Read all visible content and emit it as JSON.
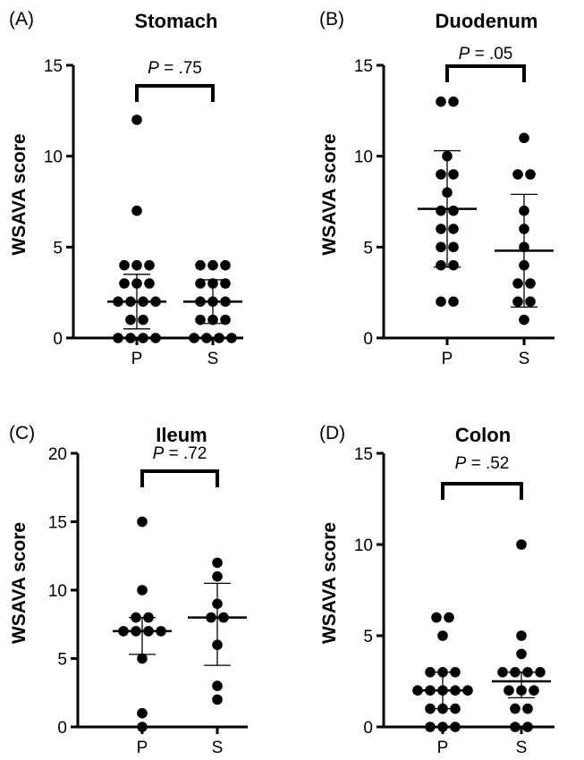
{
  "chart_data": [
    {
      "type": "scatter",
      "panel": "(A)",
      "title": "Stomach",
      "ylabel": "WSAVA score",
      "xlabel": "",
      "categories": [
        "P",
        "S"
      ],
      "ylim": [
        0,
        15
      ],
      "yticks": [
        "0",
        "5",
        "10",
        "15"
      ],
      "p_prefix": "P",
      "p_text": " = .75",
      "series": [
        {
          "category": "P",
          "values": [
            12,
            7,
            4,
            4,
            4,
            3,
            3,
            3,
            2,
            2,
            2,
            2,
            1,
            1,
            0,
            0,
            0,
            0
          ],
          "mean": 2.0,
          "sd_low": 0.5,
          "sd_high": 3.5
        },
        {
          "category": "S",
          "values": [
            4,
            4,
            4,
            3,
            3,
            3,
            2,
            2,
            2,
            1,
            1,
            1,
            0,
            0,
            0,
            0
          ],
          "mean": 2.0,
          "sd_low": 0.8,
          "sd_high": 3.2
        }
      ]
    },
    {
      "type": "scatter",
      "panel": "(B)",
      "title": "Duodenum",
      "ylabel": "WSAVA score",
      "xlabel": "",
      "categories": [
        "P",
        "S"
      ],
      "ylim": [
        0,
        15
      ],
      "yticks": [
        "0",
        "5",
        "10",
        "15"
      ],
      "p_prefix": "P",
      "p_text": " = .05",
      "series": [
        {
          "category": "P",
          "values": [
            13,
            13,
            10,
            9,
            9,
            8,
            7,
            7,
            6,
            6,
            5,
            5,
            4,
            4,
            2,
            2
          ],
          "mean": 7.1,
          "sd_low": 3.9,
          "sd_high": 10.3
        },
        {
          "category": "S",
          "values": [
            11,
            9,
            9,
            7,
            6,
            5,
            4,
            3,
            3,
            2,
            2,
            1
          ],
          "mean": 4.8,
          "sd_low": 1.7,
          "sd_high": 7.9
        }
      ]
    },
    {
      "type": "scatter",
      "panel": "(C)",
      "title": "Ileum",
      "ylabel": "WSAVA score",
      "xlabel": "",
      "categories": [
        "P",
        "S"
      ],
      "ylim": [
        0,
        20
      ],
      "yticks": [
        "0",
        "5",
        "10",
        "15",
        "20"
      ],
      "p_prefix": "P",
      "p_text": " = .72",
      "series": [
        {
          "category": "P",
          "values": [
            15,
            10,
            8,
            8,
            7,
            7,
            7,
            7,
            5,
            1,
            0
          ],
          "mean": 7.0,
          "sd_low": 5.3,
          "sd_high": 8.0
        },
        {
          "category": "S",
          "values": [
            12,
            11,
            9,
            8,
            8,
            6,
            3,
            2
          ],
          "mean": 8.0,
          "sd_low": 4.5,
          "sd_high": 10.5
        }
      ]
    },
    {
      "type": "scatter",
      "panel": "(D)",
      "title": "Colon",
      "ylabel": "WSAVA score",
      "xlabel": "",
      "categories": [
        "P",
        "S"
      ],
      "ylim": [
        0,
        15
      ],
      "yticks": [
        "0",
        "5",
        "10",
        "15"
      ],
      "p_prefix": "P",
      "p_text": " = .52",
      "series": [
        {
          "category": "P",
          "values": [
            6,
            6,
            5,
            3,
            3,
            3,
            2,
            2,
            2,
            2,
            2,
            1,
            1,
            1,
            0,
            0,
            0
          ],
          "mean": 2.0,
          "sd_low": 1.0,
          "sd_high": 3.0
        },
        {
          "category": "S",
          "values": [
            10,
            5,
            4,
            3,
            3,
            3,
            3,
            2,
            2,
            2,
            1,
            1,
            0,
            0
          ],
          "mean": 2.5,
          "sd_low": 1.6,
          "sd_high": 3.0
        }
      ]
    }
  ]
}
